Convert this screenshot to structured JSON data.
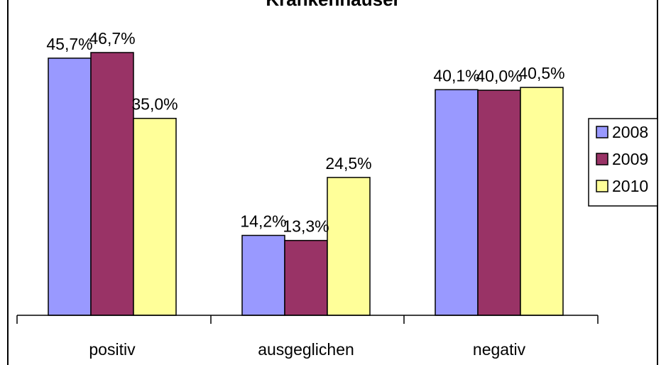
{
  "chart_data": {
    "type": "bar",
    "title": "Krankenhäuser",
    "categories": [
      "positiv",
      "ausgeglichen",
      "negativ"
    ],
    "series": [
      {
        "name": "2008",
        "values": [
          45.7,
          14.2,
          40.1
        ],
        "labels": [
          "45,7%",
          "14,2%",
          "40,1%"
        ],
        "color": "#9999FF"
      },
      {
        "name": "2009",
        "values": [
          46.7,
          13.3,
          40.0
        ],
        "labels": [
          "46,7%",
          "13,3%",
          "40,0%"
        ],
        "color": "#993366"
      },
      {
        "name": "2010",
        "values": [
          35.0,
          24.5,
          40.5
        ],
        "labels": [
          "35,0%",
          "24,5%",
          "40,5%"
        ],
        "color": "#FFFF99"
      }
    ],
    "ylim": [
      0,
      50
    ],
    "grid": false,
    "legend_position": "right"
  }
}
